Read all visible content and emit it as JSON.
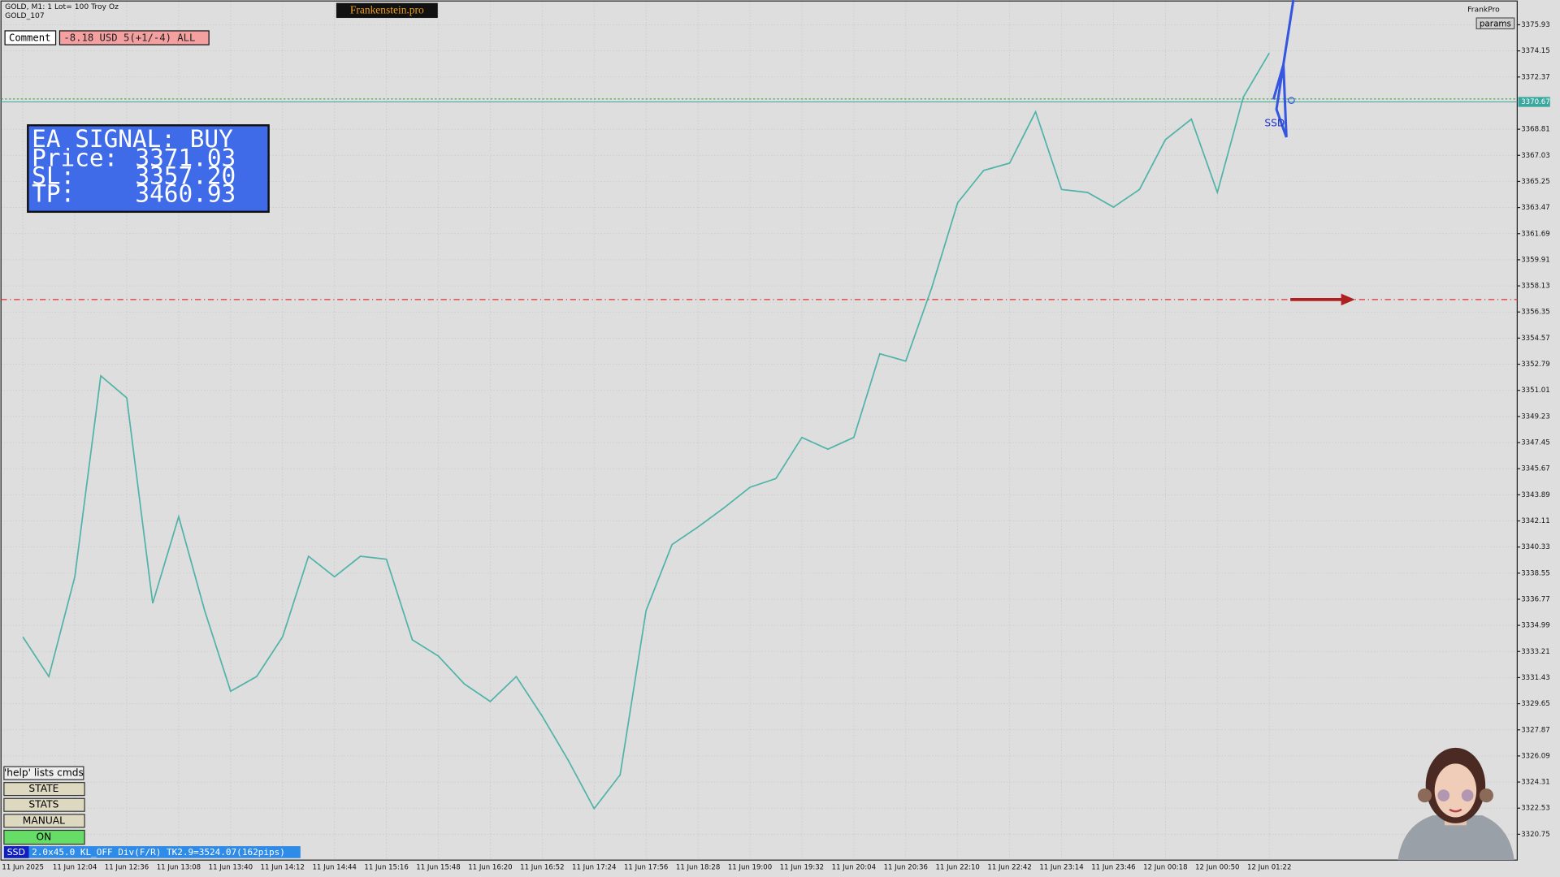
{
  "chart_data": {
    "type": "line",
    "symbol": "GOLD, M1:  1 Lot= 100 Troy Oz",
    "subtitle": "GOLD_107",
    "categories": [
      "11 Jun 2025",
      null,
      "11 Jun 12:04",
      null,
      "11 Jun 12:36",
      null,
      "11 Jun 13:08",
      null,
      "11 Jun 13:40",
      null,
      "11 Jun 14:12",
      null,
      "11 Jun 14:44",
      null,
      "11 Jun 15:16",
      null,
      "11 Jun 15:48",
      null,
      "11 Jun 16:20",
      null,
      "11 Jun 16:52",
      null,
      "11 Jun 17:24",
      null,
      "11 Jun 17:56",
      null,
      "11 Jun 18:28",
      null,
      "11 Jun 19:00",
      null,
      "11 Jun 19:32",
      null,
      "11 Jun 20:04",
      null,
      "11 Jun 20:36",
      null,
      "11 Jun 22:10",
      null,
      "11 Jun 22:42",
      null,
      "11 Jun 23:14",
      null,
      "11 Jun 23:46",
      null,
      "12 Jun 00:18",
      null,
      "12 Jun 00:50",
      null,
      "12 Jun 01:22"
    ],
    "series": [
      {
        "name": "GOLD",
        "color": "#4fb3a9",
        "values": [
          3334.2,
          3331.5,
          3338.3,
          3352.0,
          3350.5,
          3336.5,
          3342.4,
          3336.0,
          3330.5,
          3331.5,
          3334.2,
          3339.7,
          3338.3,
          3339.7,
          3339.5,
          3334.0,
          3332.9,
          3331.0,
          3329.8,
          3331.5,
          3328.8,
          3325.8,
          3322.5,
          3324.8,
          3336.0,
          3340.5,
          3341.7,
          3343.0,
          3344.4,
          3345.0,
          3347.8,
          3347.0,
          3347.8,
          3353.5,
          3353.0,
          3358.0,
          3363.8,
          3366.0,
          3366.5,
          3370.0,
          3364.7,
          3364.5,
          3363.5,
          3364.7,
          3368.1,
          3369.5,
          3364.5,
          3371.0,
          3374.0
        ]
      }
    ],
    "ylim": [
      3318.99,
      3377.55
    ],
    "yticks": [
      3375.93,
      3374.15,
      3372.37,
      3368.81,
      3367.03,
      3365.25,
      3363.47,
      3361.69,
      3359.91,
      3358.13,
      3356.35,
      3354.57,
      3352.79,
      3351.01,
      3349.23,
      3347.45,
      3345.67,
      3343.89,
      3342.11,
      3340.33,
      3338.55,
      3336.77,
      3334.99,
      3333.21,
      3331.43,
      3329.65,
      3327.87,
      3326.09,
      3324.31,
      3322.53,
      3320.75
    ],
    "current_price": 3370.67,
    "grid": true,
    "signal": {
      "title": "EA SIGNAL: BUY",
      "price_label": "Price:",
      "price": 3371.03,
      "sl_label": "SL:",
      "sl": {
        "value": 3357.2,
        "label": "3357.20"
      },
      "tp_label": "TP:",
      "tp": 3460.93
    },
    "marker_label": "SSD"
  },
  "ui": {
    "brand": "Frankenstein.pro",
    "comment": "Comment",
    "pnl": "-8.18 USD 5(+1/-4) ALL",
    "top_right": "FrankPro",
    "params": "params",
    "buttons": [
      "'help' lists cmds",
      "STATE",
      "STATS",
      "MANUAL",
      "ON"
    ],
    "status_tag": "SSD",
    "status_text": "2.0x45.0 KL_OFF Div(F/R) TK2.9=3524.07(162pips)"
  }
}
